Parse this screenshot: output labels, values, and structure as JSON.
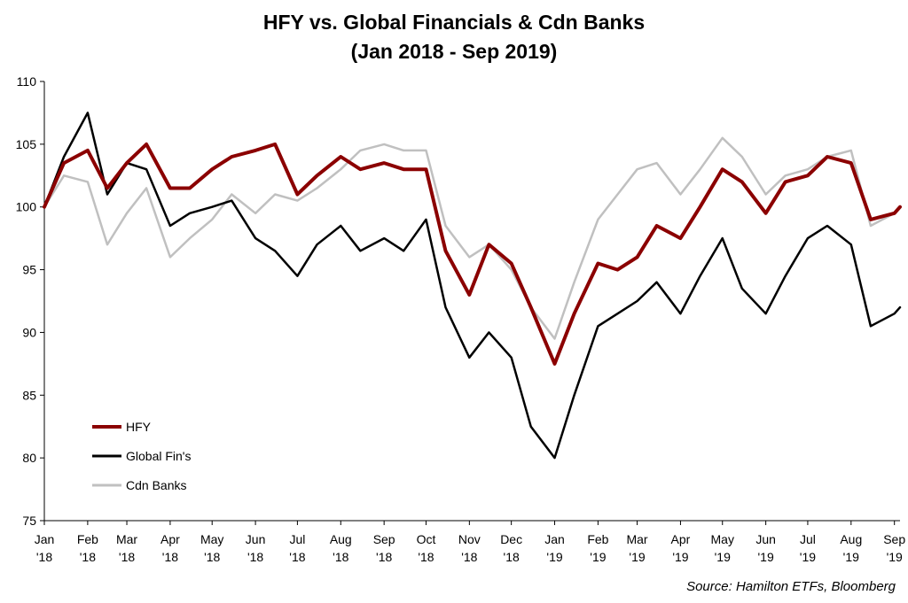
{
  "title_line1": "HFY vs. Global Financials & Cdn Banks",
  "title_line2": "(Jan 2018 - Sep 2019)",
  "source": "Source: Hamilton ETFs, Bloomberg",
  "chart_data": {
    "type": "line",
    "title": "HFY vs. Global Financials & Cdn Banks (Jan 2018 - Sep 2019)",
    "xlabel": "",
    "ylabel": "",
    "ylim": [
      75,
      110
    ],
    "yticks": [
      75,
      80,
      85,
      90,
      95,
      100,
      105,
      110
    ],
    "grid": false,
    "legend_position": "bottom-left",
    "x_tick_labels": [
      [
        "Jan",
        "'18"
      ],
      [
        "Feb",
        "'18"
      ],
      [
        "Mar",
        "'18"
      ],
      [
        "Apr",
        "'18"
      ],
      [
        "May",
        "'18"
      ],
      [
        "Jun",
        "'18"
      ],
      [
        "Jul",
        "'18"
      ],
      [
        "Aug",
        "'18"
      ],
      [
        "Sep",
        "'18"
      ],
      [
        "Oct",
        "'18"
      ],
      [
        "Nov",
        "'18"
      ],
      [
        "Dec",
        "'18"
      ],
      [
        "Jan",
        "'19"
      ],
      [
        "Feb",
        "'19"
      ],
      [
        "Mar",
        "'19"
      ],
      [
        "Apr",
        "'19"
      ],
      [
        "May",
        "'19"
      ],
      [
        "Jun",
        "'19"
      ],
      [
        "Jul",
        "'19"
      ],
      [
        "Aug",
        "'19"
      ],
      [
        "Sep",
        "'19"
      ]
    ],
    "x": [
      "2018-01-01",
      "2018-01-15",
      "2018-02-01",
      "2018-02-15",
      "2018-03-01",
      "2018-03-15",
      "2018-04-01",
      "2018-04-15",
      "2018-05-01",
      "2018-05-15",
      "2018-06-01",
      "2018-06-15",
      "2018-07-01",
      "2018-07-15",
      "2018-08-01",
      "2018-08-15",
      "2018-09-01",
      "2018-09-15",
      "2018-10-01",
      "2018-10-15",
      "2018-11-01",
      "2018-11-15",
      "2018-12-01",
      "2018-12-15",
      "2019-01-01",
      "2019-01-15",
      "2019-02-01",
      "2019-02-15",
      "2019-03-01",
      "2019-03-15",
      "2019-04-01",
      "2019-04-15",
      "2019-05-01",
      "2019-05-15",
      "2019-06-01",
      "2019-06-15",
      "2019-07-01",
      "2019-07-15",
      "2019-08-01",
      "2019-08-15",
      "2019-09-01",
      "2019-09-05"
    ],
    "series": [
      {
        "name": "HFY",
        "color": "#8B0000",
        "width": 4,
        "values": [
          100,
          103.5,
          104.5,
          101.5,
          103.5,
          105.0,
          101.5,
          101.5,
          103.0,
          104.0,
          104.5,
          105.0,
          101.0,
          102.5,
          104.0,
          103.0,
          103.5,
          103.0,
          103.0,
          96.5,
          93.0,
          97.0,
          95.5,
          92.0,
          87.5,
          91.5,
          95.5,
          95.0,
          96.0,
          98.5,
          97.5,
          100.0,
          103.0,
          102.0,
          99.5,
          102.0,
          102.5,
          104.0,
          103.5,
          99.0,
          99.5,
          100.0
        ]
      },
      {
        "name": "Global Fin's",
        "color": "#000000",
        "width": 2.5,
        "values": [
          100,
          104.0,
          107.5,
          101.0,
          103.5,
          103.0,
          98.5,
          99.5,
          100.0,
          100.5,
          97.5,
          96.5,
          94.5,
          97.0,
          98.5,
          96.5,
          97.5,
          96.5,
          99.0,
          92.0,
          88.0,
          90.0,
          88.0,
          82.5,
          80.0,
          85.0,
          90.5,
          91.5,
          92.5,
          94.0,
          91.5,
          94.5,
          97.5,
          93.5,
          91.5,
          94.5,
          97.5,
          98.5,
          97.0,
          90.5,
          91.5,
          92.0
        ]
      },
      {
        "name": "Cdn Banks",
        "color": "#c0c0c0",
        "width": 2.5,
        "values": [
          100,
          102.5,
          102.0,
          97.0,
          99.5,
          101.5,
          96.0,
          97.5,
          99.0,
          101.0,
          99.5,
          101.0,
          100.5,
          101.5,
          103.0,
          104.5,
          105.0,
          104.5,
          104.5,
          98.5,
          96.0,
          97.0,
          95.0,
          92.0,
          89.5,
          94.0,
          99.0,
          101.0,
          103.0,
          103.5,
          101.0,
          103.0,
          105.5,
          104.0,
          101.0,
          102.5,
          103.0,
          104.0,
          104.5,
          98.5,
          99.5,
          100.0
        ]
      }
    ]
  }
}
